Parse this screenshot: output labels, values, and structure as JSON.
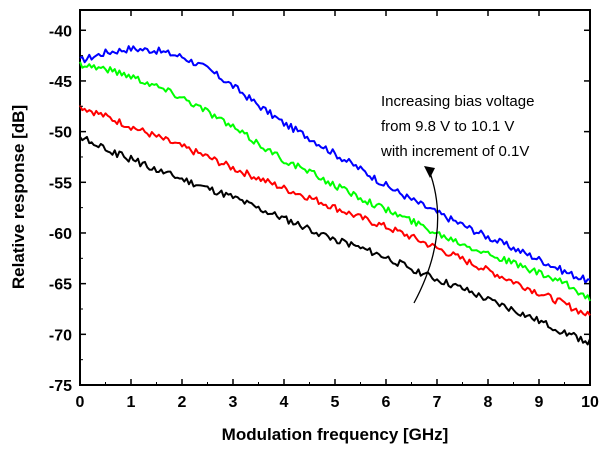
{
  "chart_data": {
    "type": "line",
    "title": "",
    "xlabel": "Modulation frequency [GHz]",
    "ylabel": "Relative response [dB]",
    "xlim": [
      0,
      10
    ],
    "ylim": [
      -75,
      -38
    ],
    "xticks": [
      0,
      1,
      2,
      3,
      4,
      5,
      6,
      7,
      8,
      9,
      10
    ],
    "yticks": [
      -75,
      -70,
      -65,
      -60,
      -55,
      -50,
      -45,
      -40
    ],
    "grid": false,
    "legend": "none",
    "annotation": {
      "lines": [
        "Increasing bias voltage",
        "from 9.8 V to 10.1 V",
        "with increment of 0.1V"
      ]
    },
    "series": [
      {
        "color": "#0000ff",
        "x": [
          0,
          0.5,
          1,
          1.5,
          2,
          2.5,
          3,
          3.5,
          4,
          4.5,
          5,
          5.5,
          6,
          6.5,
          7,
          7.5,
          8,
          8.5,
          9,
          9.5,
          10
        ],
        "y": [
          -43,
          -42.2,
          -41.8,
          -42,
          -42.6,
          -43.8,
          -45.5,
          -47.4,
          -49.2,
          -50.6,
          -52.2,
          -53.7,
          -55.3,
          -56.7,
          -58,
          -59.2,
          -60.4,
          -61.5,
          -62.6,
          -63.8,
          -64.8
        ]
      },
      {
        "color": "#00ff00",
        "x": [
          0,
          0.5,
          1,
          1.5,
          2,
          2.5,
          3,
          3.5,
          4,
          4.5,
          5,
          5.5,
          6,
          6.5,
          7,
          7.5,
          8,
          8.5,
          9,
          9.5,
          10
        ],
        "y": [
          -43.3,
          -43.8,
          -44.5,
          -45.5,
          -46.6,
          -48,
          -49.6,
          -51.2,
          -52.8,
          -54,
          -55.3,
          -56.5,
          -57.7,
          -58.8,
          -60,
          -61,
          -62,
          -63,
          -64,
          -65,
          -66.5
        ]
      },
      {
        "color": "#ff0000",
        "x": [
          0,
          0.5,
          1,
          1.5,
          2,
          2.5,
          3,
          3.5,
          4,
          4.5,
          5,
          5.5,
          6,
          6.5,
          7,
          7.5,
          8,
          8.5,
          9,
          9.5,
          10
        ],
        "y": [
          -47.5,
          -48.5,
          -49.5,
          -50.5,
          -51.5,
          -52.5,
          -53.6,
          -54.6,
          -55.6,
          -56.5,
          -57.5,
          -58.5,
          -59.4,
          -60.4,
          -61.5,
          -62.6,
          -63.7,
          -64.8,
          -65.9,
          -67,
          -68.2
        ]
      },
      {
        "color": "#000000",
        "x": [
          0,
          0.5,
          1,
          1.5,
          2,
          2.5,
          3,
          3.5,
          4,
          4.5,
          5,
          5.5,
          6,
          6.5,
          7,
          7.5,
          8,
          8.5,
          9,
          9.5,
          10
        ],
        "y": [
          -50.5,
          -51.8,
          -52.7,
          -53.8,
          -54.7,
          -55.6,
          -56.5,
          -57.6,
          -58.6,
          -59.6,
          -60.6,
          -61.5,
          -62.4,
          -63.5,
          -64.6,
          -65.5,
          -66.6,
          -67.6,
          -68.7,
          -69.8,
          -70.8
        ]
      }
    ]
  }
}
